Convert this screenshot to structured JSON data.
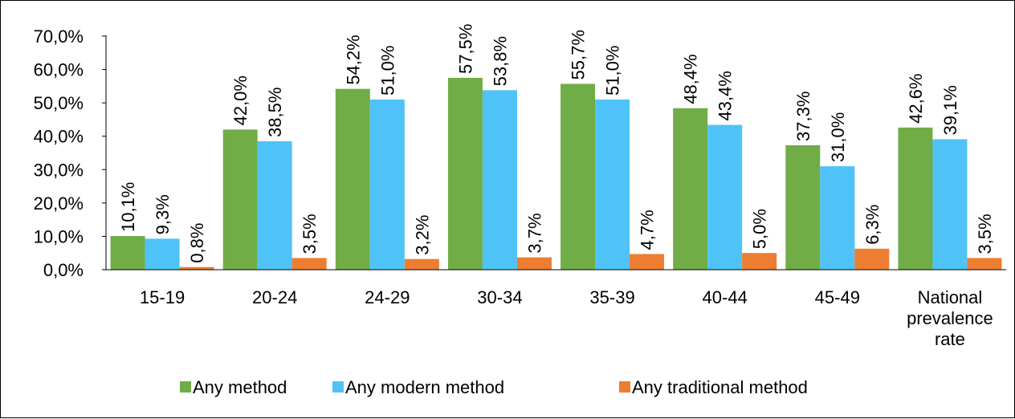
{
  "chart_data": {
    "type": "bar",
    "categories": [
      [
        "15-19"
      ],
      [
        "20-24"
      ],
      [
        "24-29"
      ],
      [
        "30-34"
      ],
      [
        "35-39"
      ],
      [
        "40-44"
      ],
      [
        "45-49"
      ],
      [
        "National",
        "prevalence",
        "rate"
      ]
    ],
    "series": [
      {
        "name": "Any method",
        "color": "#70AD47",
        "values": [
          10.1,
          42.0,
          54.2,
          57.5,
          55.7,
          48.4,
          37.3,
          42.6
        ],
        "labels": [
          "10,1%",
          "42,0%",
          "54,2%",
          "57,5%",
          "55,7%",
          "48,4%",
          "37,3%",
          "42,6%"
        ]
      },
      {
        "name": "Any modern method",
        "color": "#4FC3F7",
        "values": [
          9.3,
          38.5,
          51.0,
          53.8,
          51.0,
          43.4,
          31.0,
          39.1
        ],
        "labels": [
          "9,3%",
          "38,5%",
          "51,0%",
          "53,8%",
          "51,0%",
          "43,4%",
          "31,0%",
          "39,1%"
        ]
      },
      {
        "name": "Any traditional method",
        "color": "#ED7D31",
        "values": [
          0.8,
          3.5,
          3.2,
          3.7,
          4.7,
          5.0,
          6.3,
          3.5
        ],
        "labels": [
          "0,8%",
          "3,5%",
          "3,2%",
          "3,7%",
          "4,7%",
          "5,0%",
          "6,3%",
          "3,5%"
        ]
      }
    ],
    "ylim": [
      0,
      70
    ],
    "yticks": [
      0,
      10,
      20,
      30,
      40,
      50,
      60,
      70
    ],
    "ytick_labels": [
      "0,0%",
      "10,0%",
      "20,0%",
      "30,0%",
      "40,0%",
      "50,0%",
      "60,0%",
      "70,0%"
    ],
    "legend_position": "bottom",
    "grid": false
  }
}
